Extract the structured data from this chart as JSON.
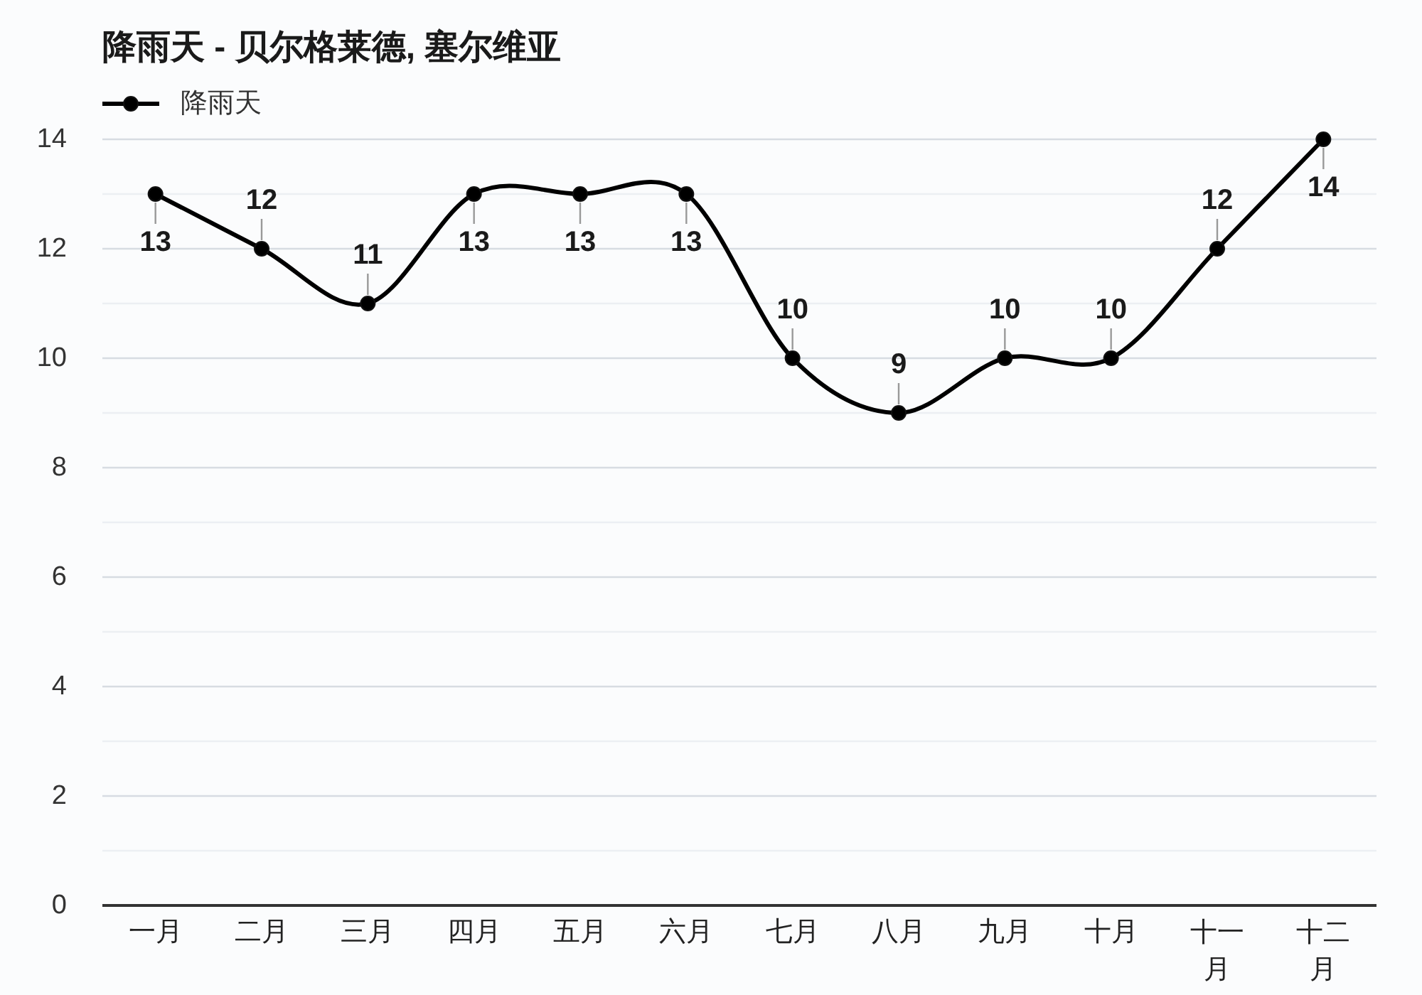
{
  "chart_data": {
    "type": "line",
    "title": "降雨天 - 贝尔格莱德, 塞尔维亚",
    "categories": [
      "一月",
      "二月",
      "三月",
      "四月",
      "五月",
      "六月",
      "七月",
      "八月",
      "九月",
      "十月",
      "十一月",
      "十二月"
    ],
    "series": [
      {
        "name": "降雨天",
        "color": "#000000",
        "values": [
          13,
          12,
          11,
          13,
          13,
          13,
          10,
          9,
          10,
          10,
          12,
          14
        ]
      }
    ],
    "ylim": [
      0,
      14
    ],
    "yticks": [
      0,
      {
        "value": 1,
        "label": null
      },
      2,
      {
        "value": 3,
        "label": null
      },
      4,
      {
        "value": 5,
        "label": null
      },
      6,
      {
        "value": 7,
        "label": null
      },
      8,
      {
        "value": 9,
        "label": null
      },
      10,
      {
        "value": 11,
        "label": null
      },
      12,
      {
        "value": 13,
        "label": null
      },
      14
    ],
    "grid": "y",
    "legend": "top left",
    "marker": "circle",
    "line_style": "solid",
    "data_labels": true
  }
}
